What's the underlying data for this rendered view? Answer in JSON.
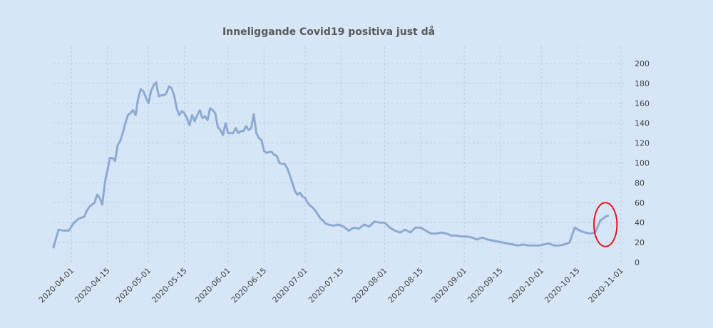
{
  "colors": {
    "background": "#d6e6f7",
    "line": "#8dabd2",
    "grid": "#b9cde3",
    "highlight_circle": "#e8141c"
  },
  "chart_data": {
    "type": "line",
    "title": "Inneliggande Covid19 positiva just då",
    "xlabel": "",
    "ylabel": "",
    "x_range": [
      "2020-03-25",
      "2020-11-03"
    ],
    "ylim": [
      0,
      210
    ],
    "y_axis_position": "right",
    "grid": true,
    "legend": "none",
    "y_ticks": [
      0,
      20,
      40,
      60,
      80,
      100,
      120,
      140,
      160,
      180,
      200
    ],
    "x_ticks": [
      "2020-04-01",
      "2020-04-15",
      "2020-05-01",
      "2020-05-15",
      "2020-06-01",
      "2020-06-15",
      "2020-07-01",
      "2020-07-15",
      "2020-08-01",
      "2020-08-15",
      "2020-09-01",
      "2020-09-15",
      "2020-10-01",
      "2020-10-15",
      "2020-11-01"
    ],
    "annotation": {
      "type": "circle",
      "color": "#e8141c",
      "center": [
        "2020-10-26",
        38
      ],
      "radius_days": 4.5,
      "radius_y": 22
    },
    "series": [
      {
        "values": [
          [
            "2020-03-25",
            15
          ],
          [
            "2020-03-27",
            33
          ],
          [
            "2020-03-29",
            32
          ],
          [
            "2020-03-31",
            32
          ],
          [
            "2020-04-02",
            40
          ],
          [
            "2020-04-04",
            44
          ],
          [
            "2020-04-06",
            46
          ],
          [
            "2020-04-07",
            52
          ],
          [
            "2020-04-08",
            56
          ],
          [
            "2020-04-09",
            58
          ],
          [
            "2020-04-10",
            60
          ],
          [
            "2020-04-11",
            68
          ],
          [
            "2020-04-12",
            65
          ],
          [
            "2020-04-13",
            58
          ],
          [
            "2020-04-14",
            80
          ],
          [
            "2020-04-15",
            92
          ],
          [
            "2020-04-16",
            105
          ],
          [
            "2020-04-17",
            105
          ],
          [
            "2020-04-18",
            102
          ],
          [
            "2020-04-19",
            118
          ],
          [
            "2020-04-20",
            122
          ],
          [
            "2020-04-21",
            130
          ],
          [
            "2020-04-22",
            140
          ],
          [
            "2020-04-23",
            148
          ],
          [
            "2020-04-24",
            150
          ],
          [
            "2020-04-25",
            153
          ],
          [
            "2020-04-26",
            148
          ],
          [
            "2020-04-27",
            165
          ],
          [
            "2020-04-28",
            174
          ],
          [
            "2020-04-29",
            172
          ],
          [
            "2020-04-30",
            166
          ],
          [
            "2020-05-01",
            160
          ],
          [
            "2020-05-02",
            172
          ],
          [
            "2020-05-03",
            178
          ],
          [
            "2020-05-04",
            181
          ],
          [
            "2020-05-05",
            167
          ],
          [
            "2020-05-06",
            168
          ],
          [
            "2020-05-07",
            168
          ],
          [
            "2020-05-08",
            170
          ],
          [
            "2020-05-09",
            177
          ],
          [
            "2020-05-10",
            175
          ],
          [
            "2020-05-11",
            168
          ],
          [
            "2020-05-12",
            155
          ],
          [
            "2020-05-13",
            148
          ],
          [
            "2020-05-14",
            152
          ],
          [
            "2020-05-15",
            150
          ],
          [
            "2020-05-16",
            145
          ],
          [
            "2020-05-17",
            138
          ],
          [
            "2020-05-18",
            148
          ],
          [
            "2020-05-19",
            142
          ],
          [
            "2020-05-20",
            148
          ],
          [
            "2020-05-21",
            153
          ],
          [
            "2020-05-22",
            145
          ],
          [
            "2020-05-23",
            147
          ],
          [
            "2020-05-24",
            143
          ],
          [
            "2020-05-25",
            155
          ],
          [
            "2020-05-26",
            153
          ],
          [
            "2020-05-27",
            150
          ],
          [
            "2020-05-28",
            136
          ],
          [
            "2020-05-29",
            133
          ],
          [
            "2020-05-30",
            128
          ],
          [
            "2020-05-31",
            140
          ],
          [
            "2020-06-01",
            130
          ],
          [
            "2020-06-02",
            130
          ],
          [
            "2020-06-03",
            130
          ],
          [
            "2020-06-04",
            135
          ],
          [
            "2020-06-05",
            130
          ],
          [
            "2020-06-06",
            132
          ],
          [
            "2020-06-07",
            132
          ],
          [
            "2020-06-08",
            137
          ],
          [
            "2020-06-09",
            133
          ],
          [
            "2020-06-10",
            135
          ],
          [
            "2020-06-11",
            149
          ],
          [
            "2020-06-12",
            130
          ],
          [
            "2020-06-13",
            125
          ],
          [
            "2020-06-14",
            123
          ],
          [
            "2020-06-15",
            112
          ],
          [
            "2020-06-16",
            110
          ],
          [
            "2020-06-17",
            111
          ],
          [
            "2020-06-18",
            111
          ],
          [
            "2020-06-19",
            108
          ],
          [
            "2020-06-20",
            107
          ],
          [
            "2020-06-21",
            100
          ],
          [
            "2020-06-22",
            99
          ],
          [
            "2020-06-23",
            99
          ],
          [
            "2020-06-24",
            95
          ],
          [
            "2020-06-25",
            88
          ],
          [
            "2020-06-26",
            80
          ],
          [
            "2020-06-27",
            72
          ],
          [
            "2020-06-28",
            68
          ],
          [
            "2020-06-29",
            70
          ],
          [
            "2020-06-30",
            66
          ],
          [
            "2020-07-01",
            65
          ],
          [
            "2020-07-02",
            60
          ],
          [
            "2020-07-03",
            57
          ],
          [
            "2020-07-04",
            55
          ],
          [
            "2020-07-05",
            52
          ],
          [
            "2020-07-06",
            48
          ],
          [
            "2020-07-07",
            44
          ],
          [
            "2020-07-08",
            42
          ],
          [
            "2020-07-09",
            39
          ],
          [
            "2020-07-10",
            38
          ],
          [
            "2020-07-12",
            37
          ],
          [
            "2020-07-14",
            38
          ],
          [
            "2020-07-16",
            36
          ],
          [
            "2020-07-18",
            32
          ],
          [
            "2020-07-20",
            35
          ],
          [
            "2020-07-22",
            34
          ],
          [
            "2020-07-24",
            38
          ],
          [
            "2020-07-26",
            36
          ],
          [
            "2020-07-28",
            41
          ],
          [
            "2020-07-30",
            40
          ],
          [
            "2020-08-01",
            40
          ],
          [
            "2020-08-03",
            35
          ],
          [
            "2020-08-05",
            32
          ],
          [
            "2020-08-07",
            30
          ],
          [
            "2020-08-09",
            33
          ],
          [
            "2020-08-11",
            30
          ],
          [
            "2020-08-13",
            35
          ],
          [
            "2020-08-15",
            35
          ],
          [
            "2020-08-17",
            32
          ],
          [
            "2020-08-19",
            29
          ],
          [
            "2020-08-21",
            29
          ],
          [
            "2020-08-23",
            30
          ],
          [
            "2020-08-25",
            29
          ],
          [
            "2020-08-27",
            27
          ],
          [
            "2020-08-29",
            27
          ],
          [
            "2020-08-31",
            26
          ],
          [
            "2020-09-02",
            26
          ],
          [
            "2020-09-04",
            25
          ],
          [
            "2020-09-06",
            23
          ],
          [
            "2020-09-08",
            25
          ],
          [
            "2020-09-10",
            23
          ],
          [
            "2020-09-12",
            22
          ],
          [
            "2020-09-14",
            21
          ],
          [
            "2020-09-16",
            20
          ],
          [
            "2020-09-18",
            19
          ],
          [
            "2020-09-20",
            18
          ],
          [
            "2020-09-22",
            17
          ],
          [
            "2020-09-24",
            18
          ],
          [
            "2020-09-26",
            17
          ],
          [
            "2020-09-28",
            17
          ],
          [
            "2020-09-30",
            17
          ],
          [
            "2020-10-02",
            18
          ],
          [
            "2020-10-04",
            19
          ],
          [
            "2020-10-06",
            17
          ],
          [
            "2020-10-08",
            17
          ],
          [
            "2020-10-10",
            18
          ],
          [
            "2020-10-12",
            20
          ],
          [
            "2020-10-14",
            35
          ],
          [
            "2020-10-16",
            32
          ],
          [
            "2020-10-18",
            30
          ],
          [
            "2020-10-20",
            29
          ],
          [
            "2020-10-22",
            30
          ],
          [
            "2020-10-24",
            42
          ],
          [
            "2020-10-26",
            46
          ],
          [
            "2020-10-27",
            47
          ]
        ]
      }
    ]
  }
}
